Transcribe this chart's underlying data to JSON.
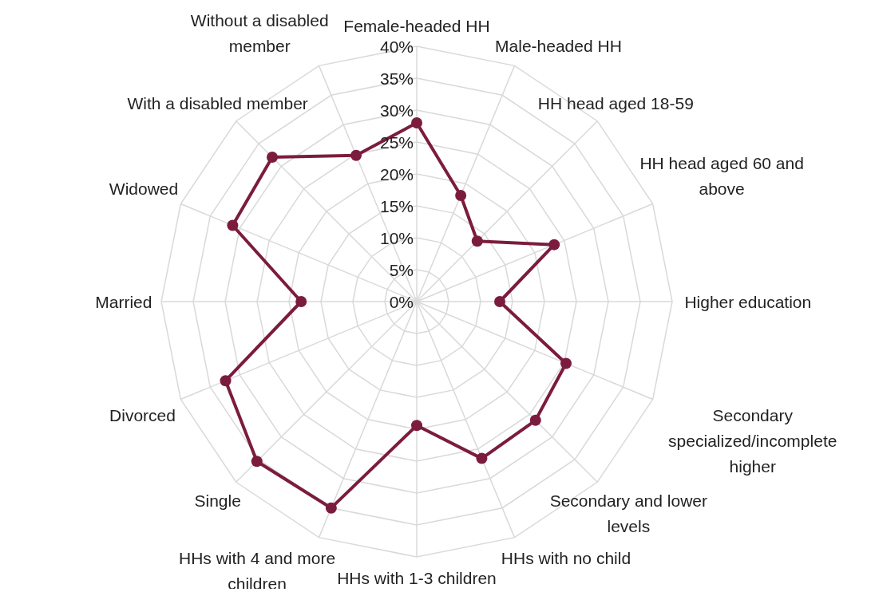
{
  "chart_data": {
    "type": "radar",
    "categories": [
      "Female-headed HH",
      "Male-headed HH",
      "HH head aged 18-59",
      "HH head aged 60 and above",
      "Higher education",
      "Secondary specialized/incomplete higher",
      "Secondary and lower levels",
      "HHs with no child",
      "HHs with 1-3 children",
      "HHs with 4 and more children",
      "Single",
      "Divorced",
      "Married",
      "Widowed",
      "With a disabled member",
      "Without a disabled member"
    ],
    "series": [
      {
        "color": "#7b1c3e",
        "values": [
          28,
          18,
          13.4,
          23.3,
          13,
          25.3,
          26.3,
          26.6,
          19.4,
          35,
          35.4,
          32.4,
          18.1,
          31.2,
          32,
          24.8
        ]
      }
    ],
    "ylim": [
      0,
      40
    ],
    "yticks": [
      {
        "value": 0,
        "label": "0%"
      },
      {
        "value": 5,
        "label": "5%"
      },
      {
        "value": 10,
        "label": "10%"
      },
      {
        "value": 15,
        "label": "15%"
      },
      {
        "value": 20,
        "label": "20%"
      },
      {
        "value": 25,
        "label": "25%"
      },
      {
        "value": 30,
        "label": "30%"
      },
      {
        "value": 35,
        "label": "35%"
      },
      {
        "value": 40,
        "label": "40%"
      }
    ],
    "grid": true,
    "marker": "circle",
    "legend": false
  }
}
